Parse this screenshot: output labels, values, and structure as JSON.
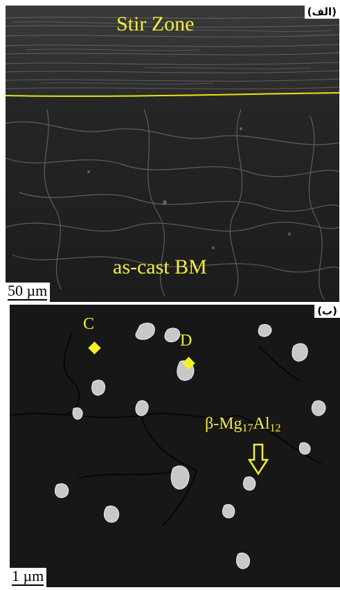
{
  "panel_a": {
    "tag": "(الف)",
    "top_label": "Stir Zone",
    "bottom_label": "as-cast BM",
    "scale_label": "50 µm",
    "boundary_color": "#e8e617"
  },
  "panel_b": {
    "tag": "(ب)",
    "marker_c": "C",
    "marker_d": "D",
    "phase_prefix": "β-Mg",
    "phase_sub1": "17",
    "phase_mid": "Al",
    "phase_sub2": "12",
    "scale_label": "1 µm",
    "arrow_icon": "down-arrow-icon",
    "marker_icon": "diamond-marker-icon"
  },
  "colors": {
    "annotation_yellow": "#f2ee3a",
    "micrograph_dark": "#1e1e1e",
    "particle_light": "#cfcfcf"
  }
}
